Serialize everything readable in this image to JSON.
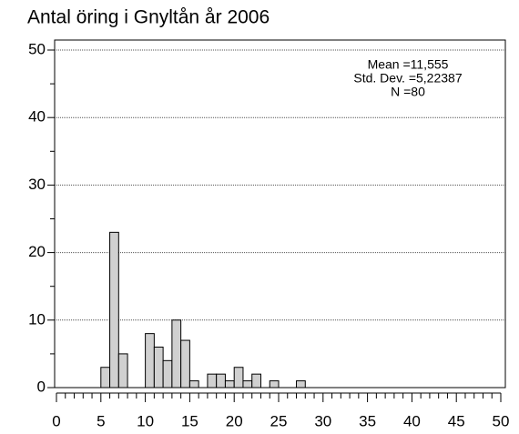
{
  "chart_data": {
    "type": "histogram",
    "title": "Antal öring i Gnyltån år 2006",
    "annotations": [
      "Mean =11,555",
      "Std. Dev. =5,22387",
      "N =80"
    ],
    "bins": [
      5,
      6,
      7,
      8,
      9,
      10,
      11,
      12,
      13,
      14,
      15,
      16,
      17,
      18,
      19,
      20,
      21,
      22,
      23,
      24,
      25,
      26,
      27,
      28
    ],
    "values": [
      3,
      23,
      5,
      0,
      0,
      8,
      6,
      4,
      10,
      7,
      1,
      0,
      2,
      2,
      1,
      3,
      1,
      2,
      0,
      1,
      0,
      0,
      1
    ],
    "color": "#d0d0d0",
    "xlim": [
      0,
      50
    ],
    "xticks": [
      0,
      5,
      10,
      15,
      20,
      25,
      30,
      35,
      40,
      45,
      50
    ],
    "ylim": [
      0,
      50
    ],
    "yticks": [
      0,
      10,
      20,
      30,
      40,
      50
    ],
    "grid": true
  }
}
